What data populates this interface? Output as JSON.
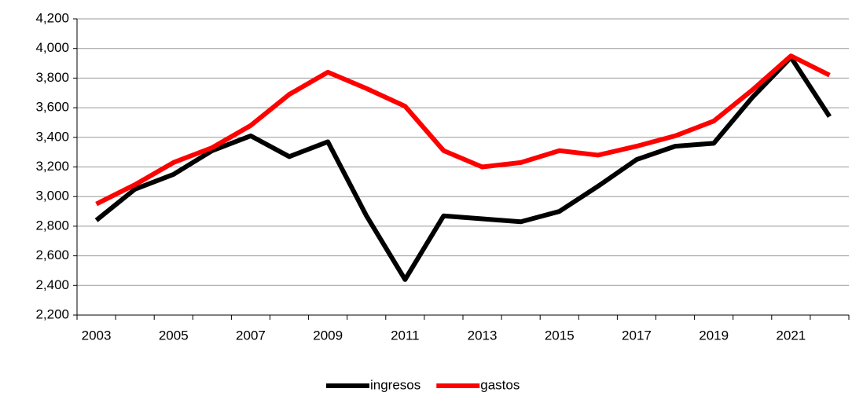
{
  "chart_data": {
    "type": "line",
    "categories": [
      "2003",
      null,
      "2005",
      null,
      "2007",
      null,
      "2009",
      null,
      "2011",
      null,
      "2013",
      null,
      "2015",
      null,
      "2017",
      null,
      "2019",
      null,
      "2021",
      null
    ],
    "series": [
      {
        "name": "ingresos",
        "color": "#000000",
        "values": [
          2840,
          3050,
          3150,
          3310,
          3410,
          3270,
          3370,
          2870,
          2440,
          2870,
          2850,
          2830,
          2900,
          3070,
          3250,
          3340,
          3360,
          3670,
          3940,
          3540
        ]
      },
      {
        "name": "gastos",
        "color": "#ff0000",
        "values": [
          2950,
          3080,
          3230,
          3330,
          3480,
          3690,
          3840,
          3730,
          3610,
          3310,
          3200,
          3230,
          3310,
          3280,
          3340,
          3410,
          3510,
          3720,
          3950,
          3820
        ]
      }
    ],
    "ylim": [
      2200,
      4200
    ],
    "yticks": [
      {
        "value": 2200,
        "label": "2,200"
      },
      {
        "value": 2400,
        "label": "2,400"
      },
      {
        "value": 2600,
        "label": "2,600"
      },
      {
        "value": 2800,
        "label": "2,800"
      },
      {
        "value": 3000,
        "label": "3,000"
      },
      {
        "value": 3200,
        "label": "3,200"
      },
      {
        "value": 3400,
        "label": "3,400"
      },
      {
        "value": 3600,
        "label": "3,600"
      },
      {
        "value": 3800,
        "label": "3,800"
      },
      {
        "value": 4000,
        "label": "4,000"
      },
      {
        "value": 4200,
        "label": "4,200"
      }
    ],
    "grid": true,
    "legend": "bottom"
  }
}
